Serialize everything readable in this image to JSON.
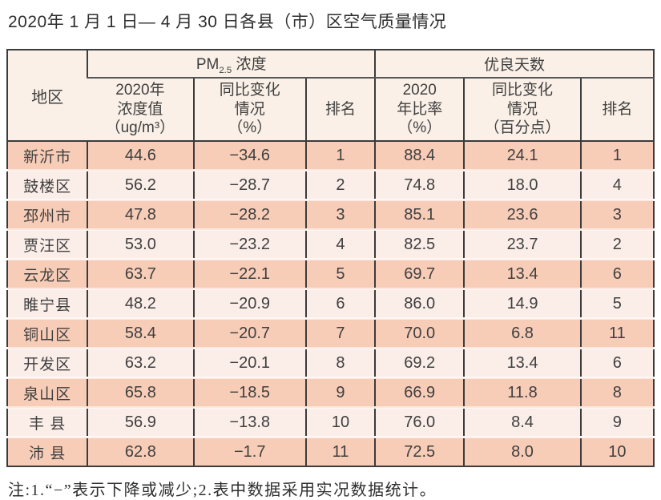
{
  "page": {
    "title": "2020年 1 月 1 日— 4 月 30 日各县（市）区空气质量情况",
    "note": "注:1.“−”表示下降或减少;2.表中数据采用实况数据统计。"
  },
  "colors": {
    "row_dark": "#f8cdb8",
    "row_light": "#fbeee8",
    "header_bg": "#faf0e7",
    "border": "#3c3c3c",
    "text": "#3f3f3f"
  },
  "table": {
    "group_headers": {
      "region": "地区",
      "pm25": {
        "prefix": "PM",
        "sub": "2.5",
        "suffix": " 浓度"
      },
      "good_days": "优良天数"
    },
    "sub_headers": [
      "2020年\n浓度值\n（ug/m³）",
      "同比变化\n情况\n（%）",
      "排名",
      "2020\n年比率\n（%）",
      "同比变化\n情况\n（百分点）",
      "排名"
    ],
    "rows": [
      {
        "cells": [
          "新沂市",
          "44.6",
          "−34.6",
          "1",
          "88.4",
          "24.1",
          "1"
        ]
      },
      {
        "cells": [
          "鼓楼区",
          "56.2",
          "−28.7",
          "2",
          "74.8",
          "18.0",
          "4"
        ]
      },
      {
        "cells": [
          "邳州市",
          "47.8",
          "−28.2",
          "3",
          "85.1",
          "23.6",
          "3"
        ]
      },
      {
        "cells": [
          "贾汪区",
          "53.0",
          "−23.2",
          "4",
          "82.5",
          "23.7",
          "2"
        ]
      },
      {
        "cells": [
          "云龙区",
          "63.7",
          "−22.1",
          "5",
          "69.7",
          "13.4",
          "6"
        ]
      },
      {
        "cells": [
          "睢宁县",
          "48.2",
          "−20.9",
          "6",
          "86.0",
          "14.9",
          "5"
        ]
      },
      {
        "cells": [
          "铜山区",
          "58.4",
          "−20.7",
          "7",
          "70.0",
          "6.8",
          "11"
        ]
      },
      {
        "cells": [
          "开发区",
          "63.2",
          "−20.1",
          "8",
          "69.2",
          "13.4",
          "6"
        ]
      },
      {
        "cells": [
          "泉山区",
          "65.8",
          "−18.5",
          "9",
          "66.9",
          "11.8",
          "8"
        ]
      },
      {
        "cells": [
          "丰 县",
          "56.9",
          "−13.8",
          "10",
          "76.0",
          "8.4",
          "9"
        ]
      },
      {
        "cells": [
          "沛 县",
          "62.8",
          "−1.7",
          "11",
          "72.5",
          "8.0",
          "10"
        ]
      }
    ]
  }
}
